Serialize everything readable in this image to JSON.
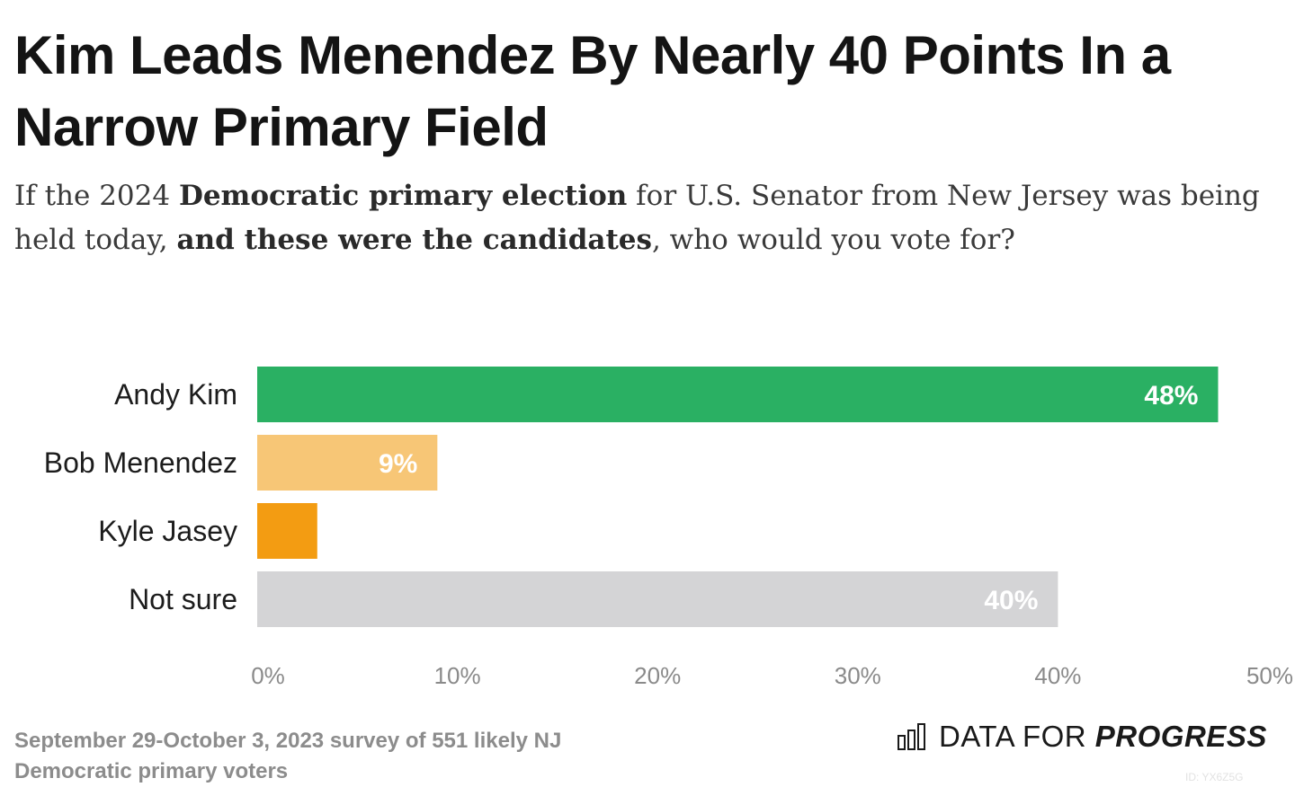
{
  "title": "Kim Leads Menendez By Nearly 40 Points In a Narrow Primary Field",
  "subtitle": {
    "p1": "If the 2024 ",
    "b1": "Democratic primary election",
    "p2": " for U.S. Senator from New Jersey was being held today, ",
    "b2": "and these were the candidates",
    "p3": ", who would you vote for?"
  },
  "chart_data": {
    "type": "bar",
    "orientation": "horizontal",
    "categories": [
      "Andy Kim",
      "Bob Menendez",
      "Kyle Jasey",
      "Not sure"
    ],
    "values": [
      48,
      9,
      3,
      40
    ],
    "value_labels": [
      "48%",
      "9%",
      "",
      "40%"
    ],
    "colors": [
      "#2ab063",
      "#f7c676",
      "#f39c12",
      "#d4d4d6"
    ],
    "xlim": [
      0,
      50
    ],
    "ticks": [
      0,
      10,
      20,
      30,
      40,
      50
    ],
    "tick_labels": [
      "0%",
      "10%",
      "20%",
      "30%",
      "40%",
      "50%"
    ],
    "grid": false
  },
  "footnote": "September 29-October 3, 2023 survey of 551 likely NJ Democratic primary voters",
  "brand": {
    "part1": "DATA FOR ",
    "part2": "PROGRESS",
    "icon": "bar-chart-logo-icon"
  },
  "chart_id": "ID: YX6Z5G"
}
